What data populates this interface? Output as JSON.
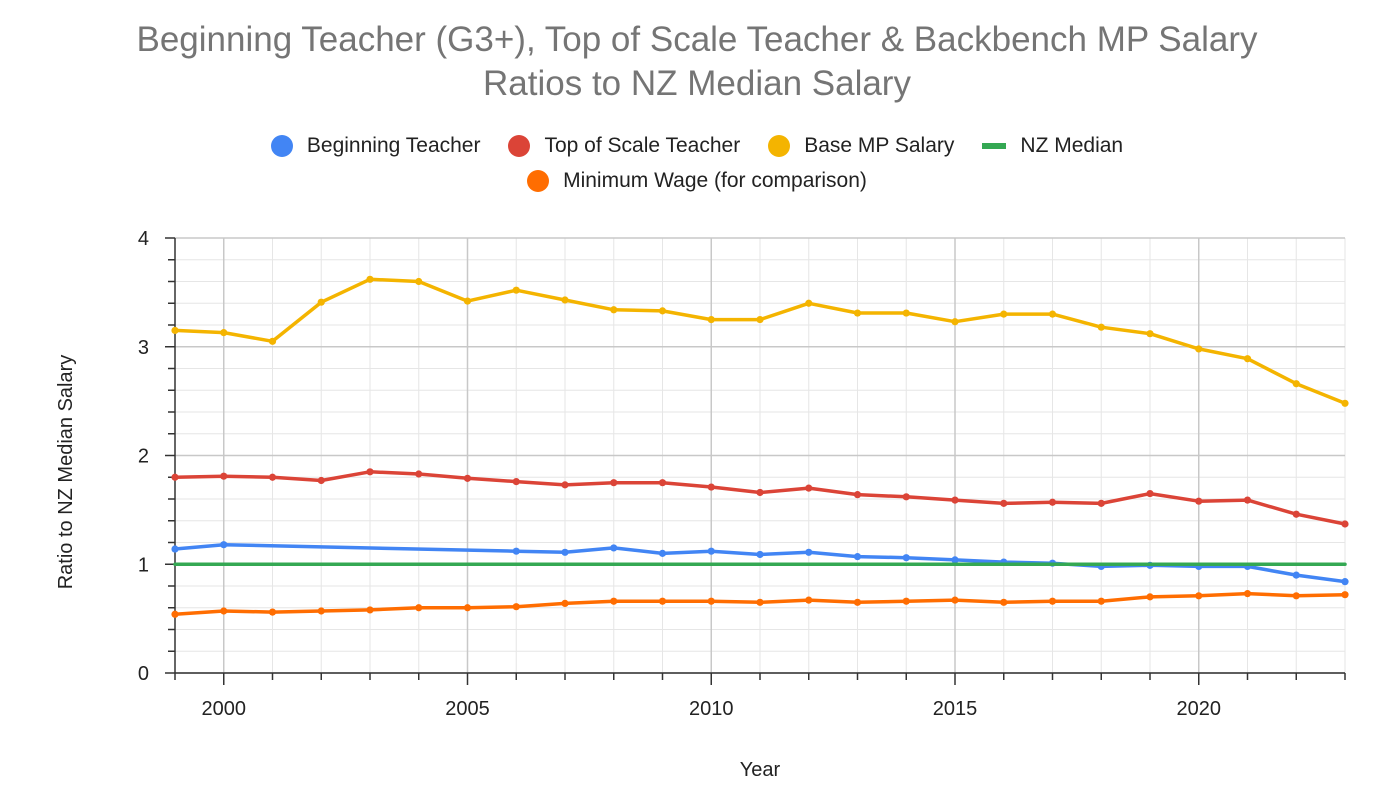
{
  "chart_data": {
    "type": "line",
    "title_line1": "Beginning Teacher (G3+), Top of Scale Teacher & Backbench MP Salary",
    "title_line2": "Ratios to NZ Median Salary",
    "xlabel": "Year",
    "ylabel": "Ratio to NZ Median Salary",
    "xlim": [
      1999,
      2023
    ],
    "ylim": [
      0,
      4
    ],
    "x_ticks": [
      2000,
      2005,
      2010,
      2015,
      2020
    ],
    "y_ticks": [
      0,
      1,
      2,
      3,
      4
    ],
    "grid": true,
    "legend_position": "top",
    "x": [
      1999,
      2000,
      2001,
      2002,
      2003,
      2004,
      2005,
      2006,
      2007,
      2008,
      2009,
      2010,
      2011,
      2012,
      2013,
      2014,
      2015,
      2016,
      2017,
      2018,
      2019,
      2020,
      2021,
      2022,
      2023
    ],
    "series": [
      {
        "name": "Beginning Teacher",
        "color": "#4285f4",
        "marker": "dot",
        "x": [
          1999,
          2000,
          2006,
          2007,
          2008,
          2009,
          2010,
          2011,
          2012,
          2013,
          2014,
          2015,
          2016,
          2017,
          2018,
          2019,
          2020,
          2021,
          2022,
          2023
        ],
        "values": [
          1.14,
          1.18,
          1.12,
          1.11,
          1.15,
          1.1,
          1.12,
          1.09,
          1.11,
          1.07,
          1.06,
          1.04,
          1.02,
          1.01,
          0.98,
          0.99,
          0.98,
          0.98,
          0.9,
          0.84
        ]
      },
      {
        "name": "Top of Scale Teacher",
        "color": "#db4437",
        "marker": "dot",
        "values": [
          1.8,
          1.81,
          1.8,
          1.77,
          1.85,
          1.83,
          1.79,
          1.76,
          1.73,
          1.75,
          1.75,
          1.71,
          1.66,
          1.7,
          1.64,
          1.62,
          1.59,
          1.56,
          1.57,
          1.56,
          1.65,
          1.58,
          1.59,
          1.46,
          1.37
        ]
      },
      {
        "name": "Base MP Salary",
        "color": "#f4b400",
        "marker": "dot",
        "values": [
          3.15,
          3.13,
          3.05,
          3.41,
          3.62,
          3.6,
          3.42,
          3.52,
          3.43,
          3.34,
          3.33,
          3.25,
          3.25,
          3.4,
          3.31,
          3.31,
          3.23,
          3.3,
          3.3,
          3.18,
          3.12,
          2.98,
          2.89,
          2.66,
          2.48
        ]
      },
      {
        "name": "NZ Median",
        "color": "#34a853",
        "marker": "none",
        "x": [
          1999,
          2023
        ],
        "values": [
          1.0,
          1.0
        ]
      },
      {
        "name": "Minimum Wage (for comparison)",
        "color": "#ff6d01",
        "marker": "dot",
        "values": [
          0.54,
          0.57,
          0.56,
          0.57,
          0.58,
          0.6,
          0.6,
          0.61,
          0.64,
          0.66,
          0.66,
          0.66,
          0.65,
          0.67,
          0.65,
          0.66,
          0.67,
          0.65,
          0.66,
          0.66,
          0.7,
          0.71,
          0.73,
          0.71,
          0.72
        ]
      }
    ]
  }
}
